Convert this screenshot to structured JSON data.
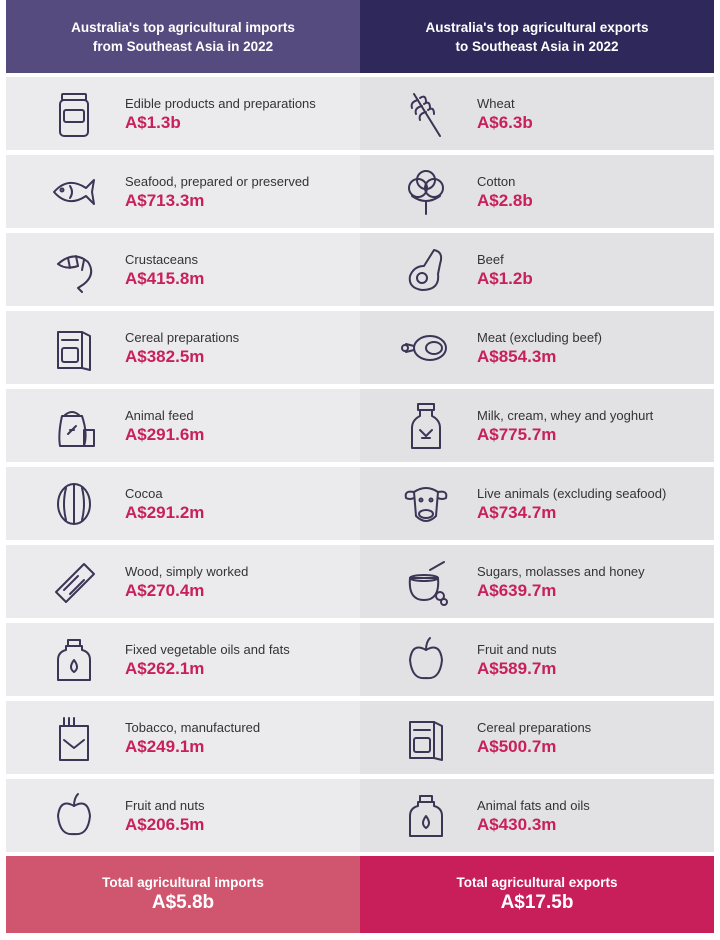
{
  "header": {
    "imports_title": "Australia's top agricultural imports\nfrom Southeast Asia in 2022",
    "exports_title": "Australia's top agricultural exports\nto Southeast Asia in 2022"
  },
  "imports": [
    {
      "label": "Edible products and preparations",
      "value": "A$1.3b",
      "icon": "jar"
    },
    {
      "label": "Seafood, prepared or preserved",
      "value": "A$713.3m",
      "icon": "fish"
    },
    {
      "label": "Crustaceans",
      "value": "A$415.8m",
      "icon": "shrimp"
    },
    {
      "label": "Cereal preparations",
      "value": "A$382.5m",
      "icon": "cereal-box"
    },
    {
      "label": "Animal feed",
      "value": "A$291.6m",
      "icon": "feed-sack"
    },
    {
      "label": "Cocoa",
      "value": "A$291.2m",
      "icon": "cocoa-pod"
    },
    {
      "label": "Wood, simply worked",
      "value": "A$270.4m",
      "icon": "wood-plank"
    },
    {
      "label": "Fixed vegetable oils and fats",
      "value": "A$262.1m",
      "icon": "oil-bottle"
    },
    {
      "label": "Tobacco, manufactured",
      "value": "A$249.1m",
      "icon": "cigarette-pack"
    },
    {
      "label": "Fruit and nuts",
      "value": "A$206.5m",
      "icon": "apple"
    }
  ],
  "exports": [
    {
      "label": "Wheat",
      "value": "A$6.3b",
      "icon": "wheat"
    },
    {
      "label": "Cotton",
      "value": "A$2.8b",
      "icon": "cotton"
    },
    {
      "label": "Beef",
      "value": "A$1.2b",
      "icon": "steak"
    },
    {
      "label": "Meat (excluding beef)",
      "value": "A$854.3m",
      "icon": "ham"
    },
    {
      "label": "Milk, cream, whey and yoghurt",
      "value": "A$775.7m",
      "icon": "milk-can"
    },
    {
      "label": "Live animals (excluding seafood)",
      "value": "A$734.7m",
      "icon": "cow"
    },
    {
      "label": "Sugars, molasses and honey",
      "value": "A$639.7m",
      "icon": "honey-pot"
    },
    {
      "label": "Fruit and nuts",
      "value": "A$589.7m",
      "icon": "apple"
    },
    {
      "label": "Cereal preparations",
      "value": "A$500.7m",
      "icon": "cereal-box"
    },
    {
      "label": "Animal fats and oils",
      "value": "A$430.3m",
      "icon": "oil-bottle"
    }
  ],
  "totals": {
    "imports_label": "Total agricultural imports",
    "imports_value": "A$5.8b",
    "exports_label": "Total agricultural exports",
    "exports_value": "A$17.5b"
  },
  "colors": {
    "header_imports": "#564b7e",
    "header_exports": "#2f295b",
    "value_text": "#c8205a",
    "total_imports": "#d0556f",
    "total_exports": "#c81f5a"
  }
}
